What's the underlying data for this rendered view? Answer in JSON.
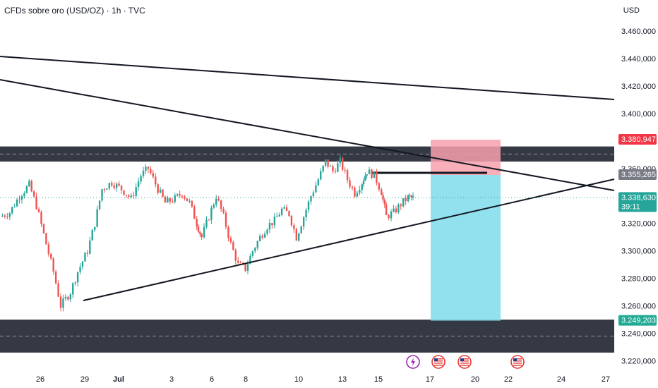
{
  "header": {
    "title": "CFDs sobre oro (USD/OZ) · 1h · TVC",
    "currency": "USD"
  },
  "chart_data": {
    "type": "candlestick",
    "title": "CFDs sobre oro (USD/OZ) · 1h · TVC",
    "ylabel": "USD",
    "ylim": [
      3210,
      3472
    ],
    "y_ticks": [
      3460,
      3440,
      3420,
      3400,
      3380,
      3360,
      3340,
      3320,
      3300,
      3280,
      3260,
      3240,
      3220
    ],
    "y_tick_labels": [
      "3.460,000",
      "3.440,000",
      "3.420,000",
      "3.400,000",
      "3.380,000",
      "3.360,000",
      "3.340,000",
      "3.320,000",
      "3.300,000",
      "3.280,000",
      "3.260,000",
      "3.240,000",
      "3.220,000"
    ],
    "x_ticks": [
      "26",
      "29",
      "Jul",
      "3",
      "6",
      "8",
      "10",
      "13",
      "15",
      "17",
      "20",
      "22",
      "24",
      "27"
    ],
    "price_tags": [
      {
        "label": "3.380,947",
        "value": 3380.947,
        "color": "#f23645"
      },
      {
        "label": "3.355,265",
        "value": 3355.265,
        "color": "#787b86"
      },
      {
        "label": "3.338,630",
        "value": 3338.63,
        "color": "#26a69a",
        "countdown": "39:11"
      },
      {
        "label": "3.249,203",
        "value": 3249.203,
        "color": "#22ab94"
      }
    ],
    "zones": [
      {
        "name": "resistance",
        "from": 3365,
        "to": 3376
      },
      {
        "name": "support",
        "from": 3226,
        "to": 3250
      }
    ],
    "position": {
      "entry": 3355.265,
      "stop": 3380.947,
      "target": 3249.203
    },
    "series_close_path": [
      [
        0,
        3325
      ],
      [
        0.4,
        3328
      ],
      [
        0.8,
        3340
      ],
      [
        1.2,
        3348
      ],
      [
        1.5,
        3333
      ],
      [
        1.9,
        3305
      ],
      [
        2.2,
        3285
      ],
      [
        2.5,
        3260
      ],
      [
        2.9,
        3270
      ],
      [
        3.2,
        3285
      ],
      [
        3.6,
        3300
      ],
      [
        3.9,
        3320
      ],
      [
        4.2,
        3345
      ],
      [
        4.6,
        3350
      ],
      [
        5,
        3345
      ],
      [
        5.4,
        3338
      ],
      [
        5.8,
        3355
      ],
      [
        6.1,
        3360
      ],
      [
        6.5,
        3345
      ],
      [
        6.8,
        3335
      ],
      [
        7.2,
        3338
      ],
      [
        7.5,
        3342
      ],
      [
        7.8,
        3335
      ],
      [
        8.1,
        3320
      ],
      [
        8.3,
        3310
      ],
      [
        8.6,
        3325
      ],
      [
        8.9,
        3340
      ],
      [
        9.2,
        3325
      ],
      [
        9.5,
        3305
      ],
      [
        9.8,
        3290
      ],
      [
        10.1,
        3287
      ],
      [
        10.4,
        3300
      ],
      [
        10.7,
        3310
      ],
      [
        11,
        3318
      ],
      [
        11.3,
        3322
      ],
      [
        11.6,
        3330
      ],
      [
        11.9,
        3327
      ],
      [
        12.2,
        3310
      ],
      [
        12.5,
        3325
      ],
      [
        12.8,
        3340
      ],
      [
        13.1,
        3352
      ],
      [
        13.4,
        3365
      ],
      [
        13.7,
        3358
      ],
      [
        14,
        3365
      ],
      [
        14.3,
        3352
      ],
      [
        14.6,
        3342
      ],
      [
        14.9,
        3350
      ],
      [
        15.1,
        3358
      ],
      [
        15.4,
        3355
      ],
      [
        15.7,
        3343
      ],
      [
        15.9,
        3325
      ],
      [
        16.2,
        3328
      ],
      [
        16.5,
        3334
      ],
      [
        16.8,
        3339
      ],
      [
        17,
        3338.6
      ]
    ],
    "trendlines": [
      {
        "name": "upper-descending-1"
      },
      {
        "name": "upper-descending-2"
      },
      {
        "name": "ascending-support"
      }
    ],
    "events": [
      "lightning",
      "us-flag",
      "us-flag",
      "us-flag"
    ]
  }
}
